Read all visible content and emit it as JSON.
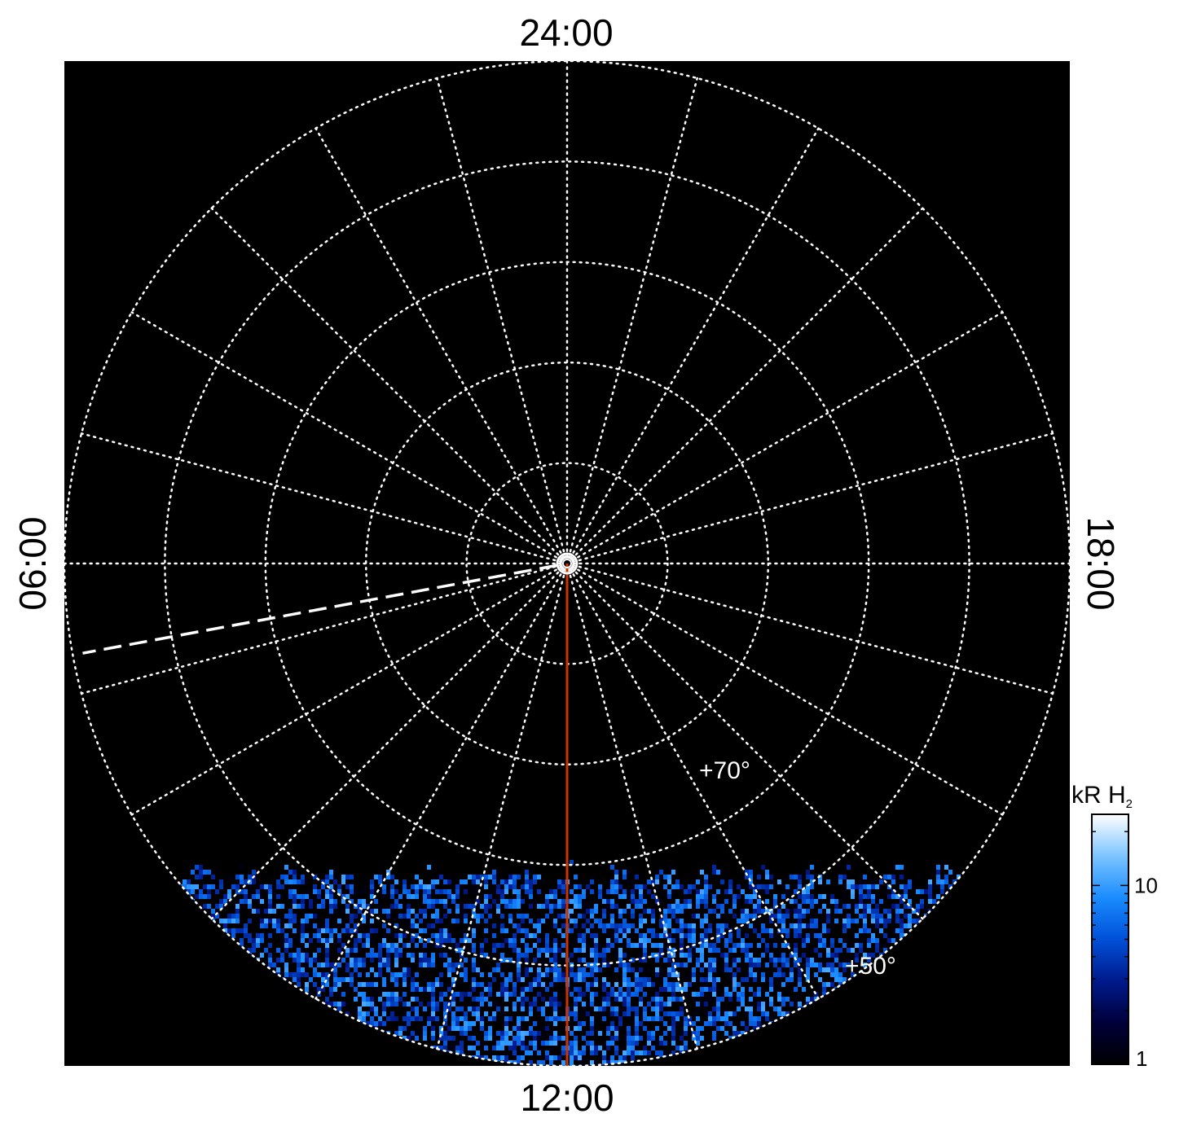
{
  "chart_data": {
    "type": "heatmap",
    "projection": "polar (north-pole centred, local time / latitude)",
    "local_time_labels": {
      "top": "24:00",
      "left": "06:00",
      "right": "18:00",
      "bottom": "12:00"
    },
    "latitude_labels": [
      {
        "text": "+70°",
        "value": 70
      },
      {
        "text": "+50°",
        "value": 50
      }
    ],
    "latitude_range_deg": [
      40,
      90
    ],
    "latitude_grid_deg": [
      50,
      60,
      70,
      80,
      90
    ],
    "local_time_grid_hours": [
      0,
      1,
      2,
      3,
      4,
      5,
      6,
      7,
      8,
      9,
      10,
      11,
      12,
      13,
      14,
      15,
      16,
      17,
      18,
      19,
      20,
      21,
      22,
      23
    ],
    "coverage_boundary_latitude_deg": 58,
    "colorbar": {
      "label_main": "kR H",
      "label_sub": "2",
      "scale": "log",
      "range": [
        1,
        25
      ],
      "tick_labels": [
        {
          "text": "10",
          "value": 10
        },
        {
          "text": "1",
          "value": 1
        }
      ],
      "colors": [
        "#000000",
        "#00003a",
        "#001a8c",
        "#0050d8",
        "#1a8cff",
        "#7cc4ff",
        "#ffffff"
      ]
    },
    "markers": {
      "red_line": {
        "local_time_hours": 12,
        "latitude_from_deg": 90,
        "latitude_to_deg": 40,
        "color": "#cc3300"
      },
      "dashed_line": {
        "local_time_hours": 6.7,
        "latitude_from_deg": 89,
        "latitude_to_deg": 41,
        "color": "#ffffff"
      }
    },
    "grid": "dotted white",
    "background": "#000000"
  }
}
